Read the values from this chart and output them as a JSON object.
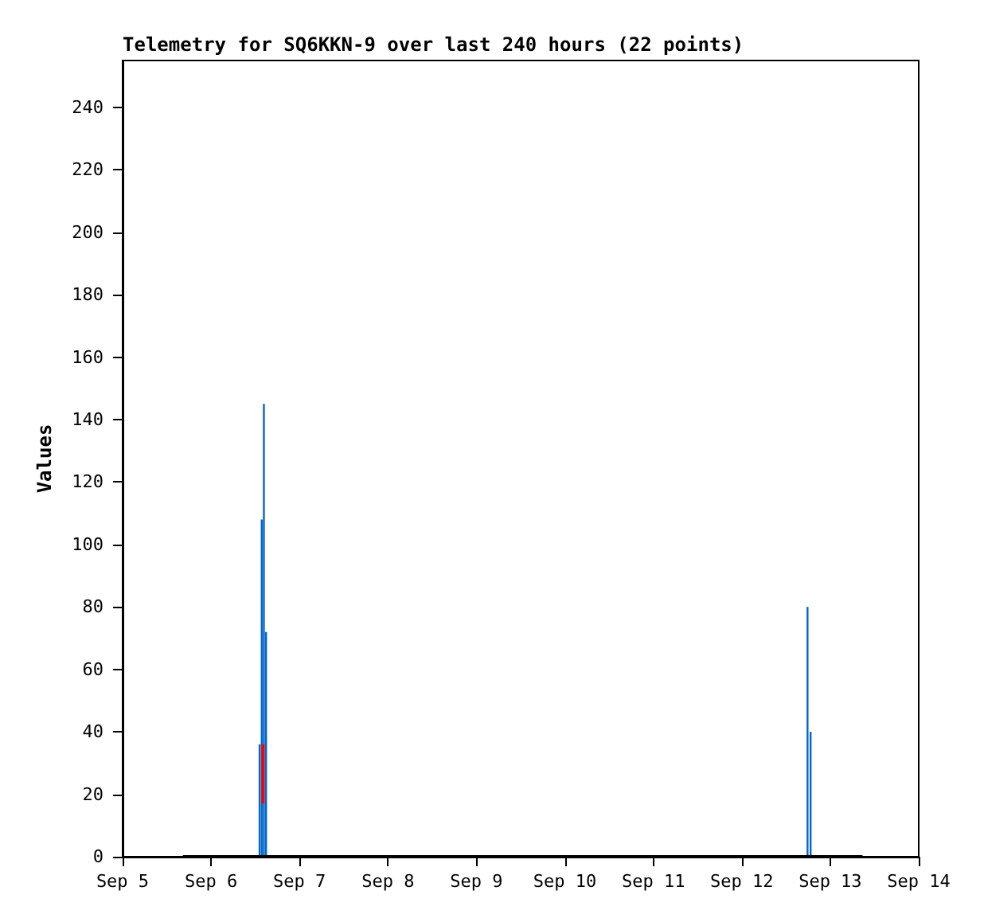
{
  "chart_data": {
    "type": "bar",
    "title": "Telemetry for SQ6KKN-9 over last 240 hours (22 points)",
    "ylabel": "Values",
    "xlim": [
      "--09-05",
      "--09-14"
    ],
    "xticks": [
      {
        "value": "--09-05",
        "label": "Sep 5"
      },
      {
        "value": "--09-06",
        "label": "Sep 6"
      },
      {
        "value": "--09-07",
        "label": "Sep 7"
      },
      {
        "value": "--09-08",
        "label": "Sep 8"
      },
      {
        "value": "--09-09",
        "label": "Sep 9"
      },
      {
        "value": "--09-10",
        "label": "Sep 10"
      },
      {
        "value": "--09-11",
        "label": "Sep 11"
      },
      {
        "value": "--09-12",
        "label": "Sep 12"
      },
      {
        "value": "--09-13",
        "label": "Sep 13"
      },
      {
        "value": "--09-14",
        "label": "Sep 14"
      }
    ],
    "ylim": [
      0,
      255
    ],
    "yticks": [
      0,
      20,
      40,
      60,
      80,
      100,
      120,
      140,
      160,
      180,
      200,
      220,
      240
    ],
    "grid": false,
    "series": [
      {
        "color": "#0066cc",
        "x": [
          "--09-06T13:10",
          "--09-06T13:45",
          "--09-06T14:20",
          "--09-06T14:55",
          "--09-12T17:50",
          "--09-12T18:40"
        ],
        "values": [
          36,
          108,
          145,
          72,
          80,
          40
        ]
      },
      {
        "type": "line",
        "color": "#ff0000",
        "x": [
          "--09-06T14:05",
          "--09-06T14:05"
        ],
        "values": [
          17,
          36
        ]
      },
      {
        "type": "line",
        "color": "#000000",
        "x": [
          "--09-05T16:20",
          "--09-13T08:45"
        ],
        "values": [
          0,
          0
        ]
      }
    ]
  }
}
